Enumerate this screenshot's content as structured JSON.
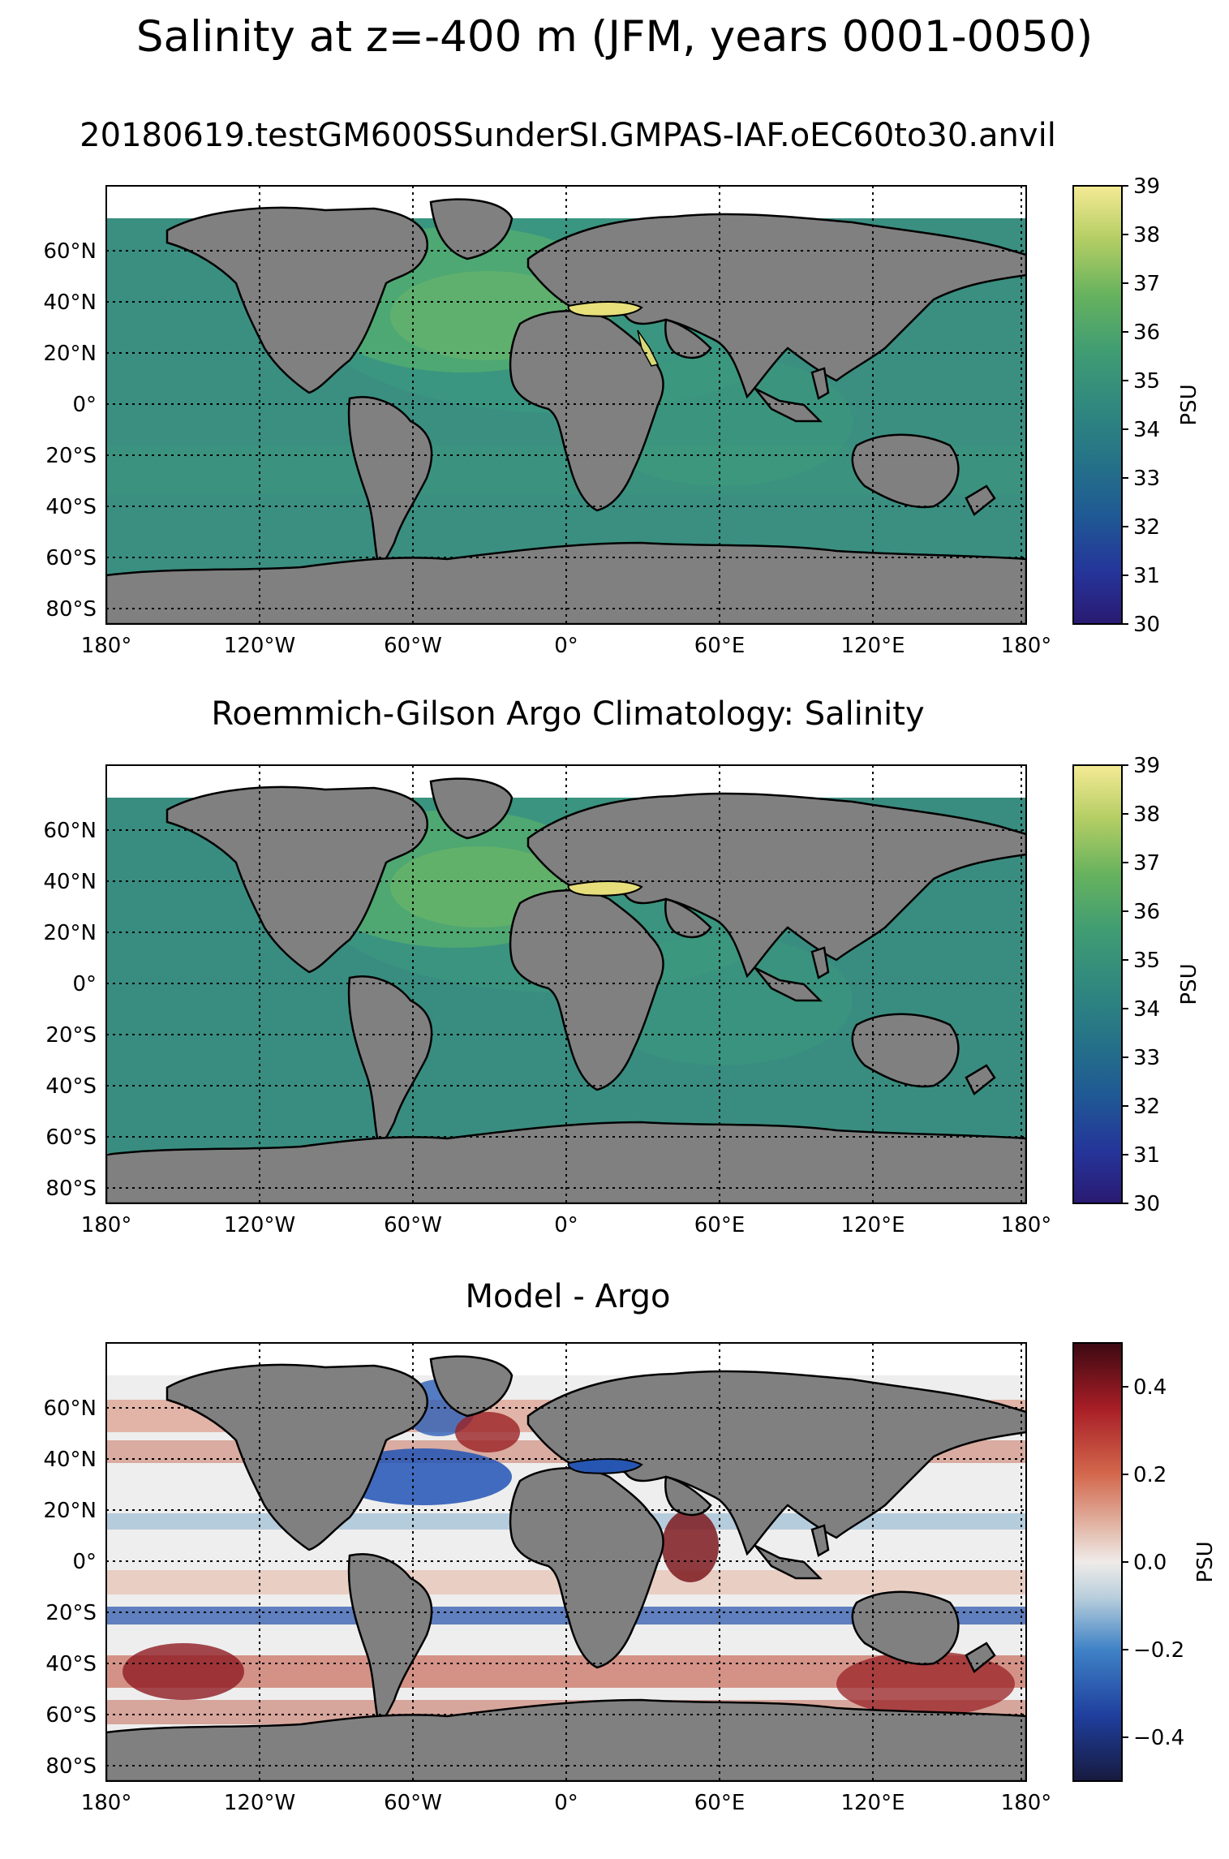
{
  "figure": {
    "title": "Salinity at z=-400 m (JFM, years 0001-0050)",
    "panels": [
      {
        "title": "20180619.testGM600SSunderSI.GMPAS-IAF.oEC60to30.anvil",
        "colorbar": {
          "label": "PSU",
          "ticks": [
            "30",
            "31",
            "32",
            "33",
            "34",
            "35",
            "36",
            "37",
            "38",
            "39"
          ],
          "range": [
            30,
            39
          ],
          "colormap": "haline"
        }
      },
      {
        "title": "Roemmich-Gilson Argo Climatology: Salinity",
        "colorbar": {
          "label": "PSU",
          "ticks": [
            "30",
            "31",
            "32",
            "33",
            "34",
            "35",
            "36",
            "37",
            "38",
            "39"
          ],
          "range": [
            30,
            39
          ],
          "colormap": "haline"
        }
      },
      {
        "title": "Model - Argo",
        "colorbar": {
          "label": "PSU",
          "ticks": [
            "−0.4",
            "−0.2",
            "0.0",
            "0.2",
            "0.4"
          ],
          "range": [
            -0.5,
            0.5
          ],
          "colormap": "balance"
        }
      }
    ],
    "lon_ticks": [
      "180°",
      "120°W",
      "60°W",
      "0°",
      "60°E",
      "120°E",
      "180°"
    ],
    "lat_ticks": [
      "60°N",
      "40°N",
      "20°N",
      "0°",
      "20°S",
      "40°S",
      "60°S",
      "80°S"
    ],
    "colors": {
      "land": "#808080",
      "ocean_haline": "#3a9a82",
      "mediterranean": "#e8e07a",
      "diff_neutral": "#eeeeee",
      "diff_pos": "#b83224",
      "diff_neg": "#2352b8"
    }
  }
}
